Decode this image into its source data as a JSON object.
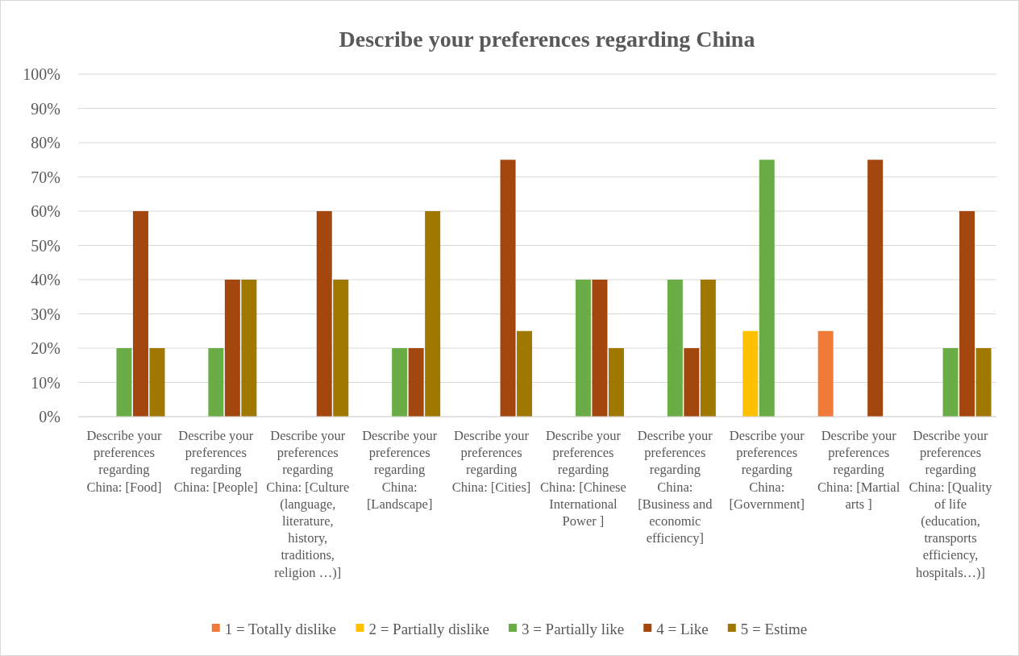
{
  "chart_data": {
    "type": "bar",
    "title": "Describe your preferences regarding China",
    "categories": [
      "Describe your preferences regarding China:  [Food]",
      "Describe your preferences regarding China: [People]",
      "Describe your preferences regarding China: [Culture (language, literature, history, traditions, religion …)]",
      "Describe your preferences regarding China: [Landscape]",
      "Describe your preferences regarding China: [Cities]",
      "Describe your preferences regarding China: [Chinese International Power ]",
      "Describe your preferences regarding China: [Business and economic efficiency]",
      "Describe your preferences regarding China: [Government]",
      "Describe your preferences regarding China: [Martial arts ]",
      "Describe your preferences regarding China: [Quality of life (education, transports efficiency, hospitals…)]"
    ],
    "series": [
      {
        "name": "1 = Totally dislike",
        "color": "#f07a3a",
        "values": [
          0,
          0,
          0,
          0,
          0,
          0,
          0,
          0,
          25,
          0
        ]
      },
      {
        "name": "2 = Partially dislike",
        "color": "#ffc000",
        "values": [
          0,
          0,
          0,
          0,
          0,
          0,
          0,
          25,
          0,
          0
        ]
      },
      {
        "name": "3 = Partially like",
        "color": "#6aac46",
        "values": [
          20,
          20,
          0,
          20,
          0,
          40,
          40,
          75,
          0,
          20
        ]
      },
      {
        "name": "4 = Like",
        "color": "#a3470f",
        "values": [
          60,
          40,
          60,
          20,
          75,
          40,
          20,
          0,
          75,
          60
        ]
      },
      {
        "name": "5 = Estime",
        "color": "#a07800",
        "values": [
          20,
          40,
          40,
          60,
          25,
          20,
          40,
          0,
          0,
          20
        ]
      }
    ],
    "ylim": [
      0,
      100
    ],
    "yticks": [
      {
        "value": 0,
        "label": "0%"
      },
      {
        "value": 10,
        "label": "10%"
      },
      {
        "value": 20,
        "label": "20%"
      },
      {
        "value": 30,
        "label": "30%"
      },
      {
        "value": 40,
        "label": "40%"
      },
      {
        "value": 50,
        "label": "50%"
      },
      {
        "value": 60,
        "label": "60%"
      },
      {
        "value": 70,
        "label": "70%"
      },
      {
        "value": 80,
        "label": "80%"
      },
      {
        "value": 90,
        "label": "90%"
      },
      {
        "value": 100,
        "label": "100%"
      }
    ],
    "grid": "y",
    "legend": "bottom"
  }
}
